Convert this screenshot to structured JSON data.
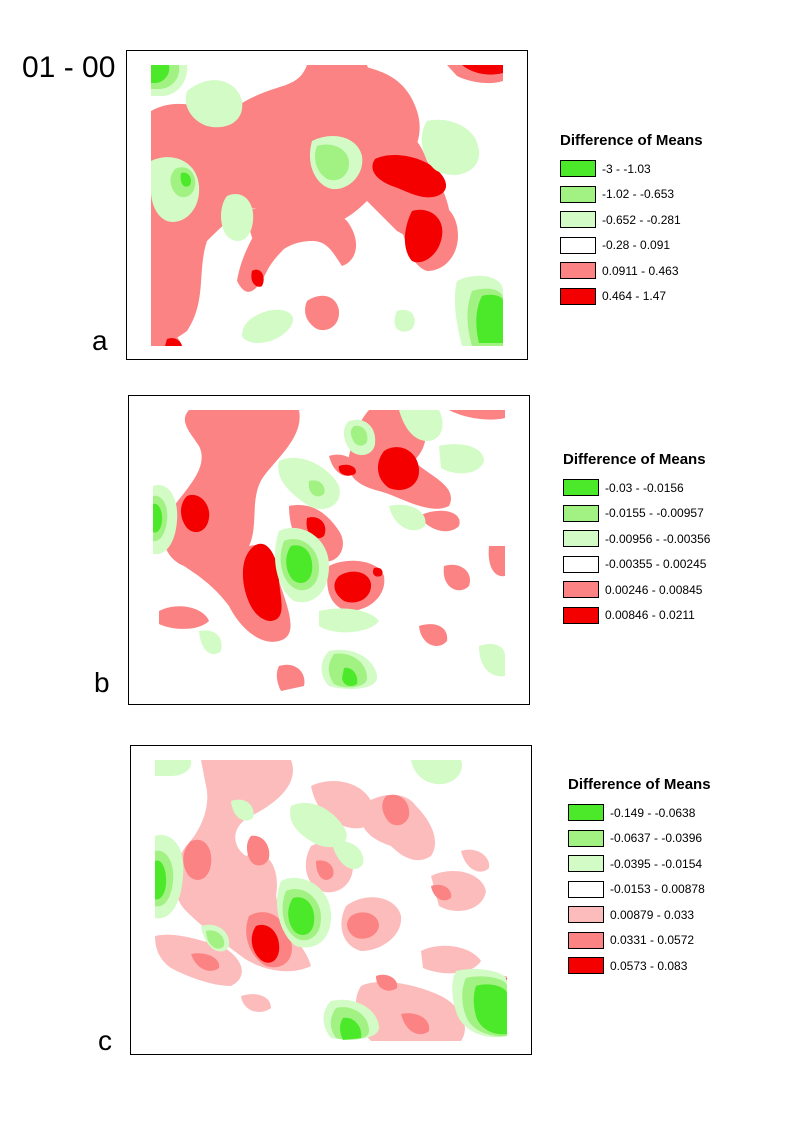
{
  "header": {
    "title": "01 - 00"
  },
  "palette": {
    "green_dark": "#4ce82a",
    "green_mid": "#a2f283",
    "green_light": "#d2fbc6",
    "white": "#ffffff",
    "pink_light": "#fdbcbc",
    "red_light": "#fb8383",
    "red_dark": "#f40000"
  },
  "panels": [
    {
      "label": "a",
      "legend": {
        "title": "Difference of Means",
        "classes": [
          {
            "label": "-3 - -1.03",
            "color": "#4ce82a"
          },
          {
            "label": "-1.02 - -0.653",
            "color": "#a2f283"
          },
          {
            "label": "-0.652 - -0.281",
            "color": "#d2fbc6"
          },
          {
            "label": "-0.28 - 0.091",
            "color": "#ffffff"
          },
          {
            "label": "0.0911 - 0.463",
            "color": "#fb8383"
          },
          {
            "label": "0.464 - 1.47",
            "color": "#f40000"
          }
        ]
      }
    },
    {
      "label": "b",
      "legend": {
        "title": "Difference of Means",
        "classes": [
          {
            "label": "-0.03 - -0.0156",
            "color": "#4ce82a"
          },
          {
            "label": "-0.0155 - -0.00957",
            "color": "#a2f283"
          },
          {
            "label": "-0.00956 - -0.00356",
            "color": "#d2fbc6"
          },
          {
            "label": "-0.00355 - 0.00245",
            "color": "#ffffff"
          },
          {
            "label": "0.00246 - 0.00845",
            "color": "#fb8383"
          },
          {
            "label": "0.00846 - 0.0211",
            "color": "#f40000"
          }
        ]
      }
    },
    {
      "label": "c",
      "legend": {
        "title": "Difference of Means",
        "classes": [
          {
            "label": "-0.149 - -0.0638",
            "color": "#4ce82a"
          },
          {
            "label": "-0.0637 - -0.0396",
            "color": "#a2f283"
          },
          {
            "label": "-0.0395 - -0.0154",
            "color": "#d2fbc6"
          },
          {
            "label": "-0.0153 - 0.00878",
            "color": "#ffffff"
          },
          {
            "label": "0.00879 - 0.033",
            "color": "#fdbcbc"
          },
          {
            "label": "0.0331 - 0.0572",
            "color": "#fb8383"
          },
          {
            "label": "0.0573 - 0.083",
            "color": "#f40000"
          }
        ]
      }
    }
  ]
}
